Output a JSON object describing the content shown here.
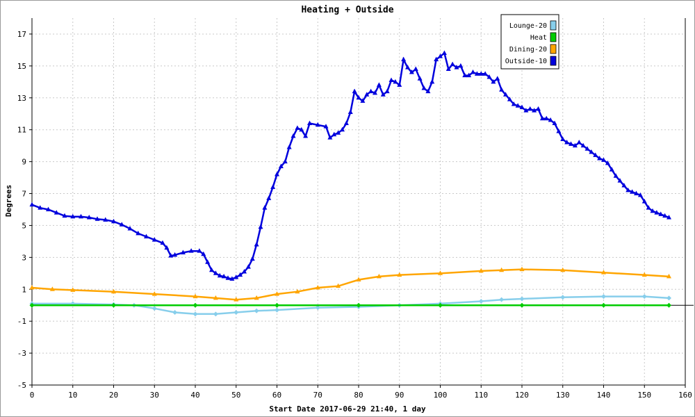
{
  "chart_data": {
    "type": "line",
    "title": "Heating + Outside",
    "xlabel": "Start Date 2017-06-29 21:40, 1 day",
    "ylabel": "Degrees",
    "xlim": [
      0,
      160
    ],
    "ylim": [
      -5,
      18
    ],
    "x_ticks": [
      0,
      10,
      20,
      30,
      40,
      50,
      60,
      70,
      80,
      90,
      100,
      110,
      120,
      130,
      140,
      150,
      160
    ],
    "y_ticks": [
      -5,
      -3,
      -1,
      1,
      3,
      5,
      7,
      9,
      11,
      13,
      15,
      17
    ],
    "grid": true,
    "legend_placement": "top-right",
    "series": [
      {
        "name": "Lounge-20",
        "color": "#87ceeb",
        "marker": "diamond",
        "x": [
          0,
          10,
          20,
          25,
          30,
          35,
          40,
          45,
          50,
          55,
          60,
          70,
          80,
          90,
          100,
          110,
          115,
          120,
          130,
          140,
          150,
          156
        ],
        "values": [
          0.1,
          0.1,
          0.05,
          0.0,
          -0.2,
          -0.45,
          -0.55,
          -0.55,
          -0.45,
          -0.35,
          -0.3,
          -0.15,
          -0.1,
          0.0,
          0.1,
          0.25,
          0.35,
          0.4,
          0.5,
          0.55,
          0.55,
          0.45
        ]
      },
      {
        "name": "Heat",
        "color": "#00cc00",
        "marker": "diamond",
        "x": [
          0,
          20,
          40,
          60,
          80,
          100,
          120,
          140,
          156
        ],
        "values": [
          0,
          0,
          0,
          0,
          0,
          0,
          0,
          0,
          0
        ]
      },
      {
        "name": "Dining-20",
        "color": "#ffa500",
        "marker": "triangle",
        "x": [
          0,
          5,
          10,
          20,
          30,
          40,
          45,
          50,
          55,
          60,
          65,
          70,
          75,
          80,
          85,
          90,
          100,
          110,
          115,
          120,
          130,
          140,
          150,
          156
        ],
        "values": [
          1.1,
          1.0,
          0.95,
          0.85,
          0.7,
          0.55,
          0.45,
          0.35,
          0.45,
          0.7,
          0.85,
          1.1,
          1.2,
          1.6,
          1.8,
          1.9,
          2.0,
          2.15,
          2.2,
          2.25,
          2.2,
          2.05,
          1.9,
          1.8
        ]
      },
      {
        "name": "Outside-10",
        "color": "#0000dd",
        "marker": "triangle",
        "x": [
          0,
          2,
          4,
          6,
          8,
          10,
          12,
          14,
          16,
          18,
          20,
          22,
          24,
          26,
          28,
          30,
          32,
          33,
          34,
          35,
          37,
          39,
          41,
          42,
          43,
          44,
          45,
          46,
          47,
          48,
          49,
          50,
          51,
          52,
          53,
          54,
          55,
          56,
          57,
          58,
          59,
          60,
          61,
          62,
          63,
          64,
          65,
          66,
          67,
          68,
          70,
          72,
          73,
          74,
          75,
          76,
          77,
          78,
          79,
          80,
          81,
          82,
          83,
          84,
          85,
          86,
          87,
          88,
          89,
          90,
          91,
          92,
          93,
          94,
          95,
          96,
          97,
          98,
          99,
          100,
          101,
          102,
          103,
          104,
          105,
          106,
          107,
          108,
          109,
          110,
          111,
          112,
          113,
          114,
          115,
          116,
          117,
          118,
          119,
          120,
          121,
          122,
          123,
          124,
          125,
          126,
          127,
          128,
          129,
          130,
          131,
          132,
          133,
          134,
          135,
          136,
          137,
          138,
          139,
          140,
          141,
          142,
          143,
          144,
          145,
          146,
          147,
          148,
          149,
          150,
          151,
          152,
          153,
          154,
          155,
          156
        ],
        "values": [
          6.3,
          6.1,
          6.0,
          5.8,
          5.6,
          5.55,
          5.55,
          5.5,
          5.4,
          5.35,
          5.25,
          5.05,
          4.8,
          4.5,
          4.3,
          4.1,
          3.9,
          3.6,
          3.1,
          3.15,
          3.3,
          3.4,
          3.4,
          3.2,
          2.7,
          2.2,
          2.0,
          1.85,
          1.8,
          1.7,
          1.65,
          1.75,
          1.9,
          2.1,
          2.4,
          2.9,
          3.8,
          4.9,
          6.1,
          6.7,
          7.4,
          8.2,
          8.7,
          9.0,
          9.9,
          10.6,
          11.1,
          11.0,
          10.6,
          11.4,
          11.3,
          11.2,
          10.5,
          10.7,
          10.8,
          11.0,
          11.4,
          12.1,
          13.4,
          13.0,
          12.8,
          13.2,
          13.4,
          13.3,
          13.8,
          13.2,
          13.4,
          14.1,
          14.0,
          13.8,
          15.4,
          14.9,
          14.6,
          14.8,
          14.2,
          13.6,
          13.4,
          14.0,
          15.4,
          15.6,
          15.8,
          14.8,
          15.1,
          14.9,
          15.0,
          14.4,
          14.4,
          14.6,
          14.5,
          14.5,
          14.5,
          14.3,
          14.0,
          14.2,
          13.5,
          13.2,
          12.9,
          12.6,
          12.5,
          12.4,
          12.2,
          12.3,
          12.2,
          12.3,
          11.7,
          11.7,
          11.6,
          11.4,
          10.9,
          10.4,
          10.2,
          10.1,
          10.0,
          10.2,
          10.0,
          9.8,
          9.6,
          9.4,
          9.2,
          9.1,
          8.9,
          8.5,
          8.1,
          7.8,
          7.5,
          7.2,
          7.1,
          7.0,
          6.9,
          6.5,
          6.1,
          5.9,
          5.8,
          5.7,
          5.6,
          5.5
        ]
      }
    ]
  }
}
